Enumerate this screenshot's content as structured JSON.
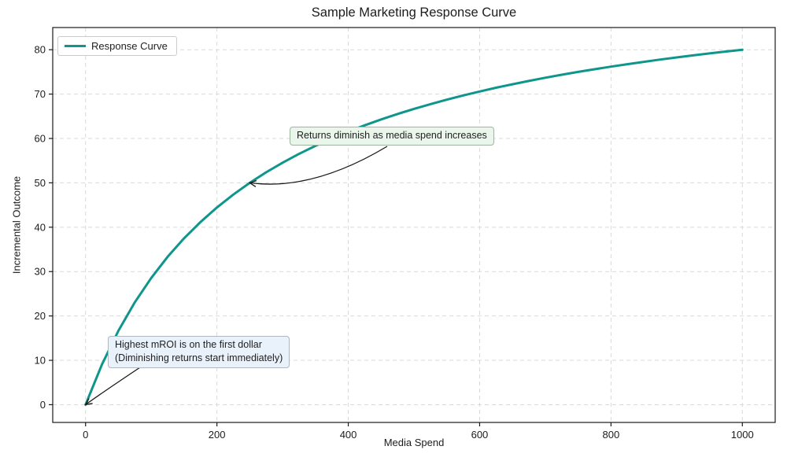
{
  "chart_data": {
    "type": "line",
    "title": "Sample Marketing Response Curve",
    "xlabel": "Media Spend",
    "ylabel": "Incremental Outcome",
    "xlim": [
      -50,
      1050
    ],
    "ylim": [
      -4,
      85
    ],
    "xticks": [
      0,
      200,
      400,
      600,
      800,
      1000
    ],
    "yticks": [
      0,
      10,
      20,
      30,
      40,
      50,
      60,
      70,
      80
    ],
    "grid": true,
    "grid_color": "#d9d9d9",
    "spine_color": "#1a1a1a",
    "legend_position": "upper left",
    "series": [
      {
        "name": "Response Curve",
        "color": "#0f968c",
        "x": [
          0,
          25,
          50,
          75,
          100,
          125,
          150,
          175,
          200,
          225,
          250,
          275,
          300,
          325,
          350,
          375,
          400,
          425,
          450,
          475,
          500,
          525,
          550,
          575,
          600,
          625,
          650,
          675,
          700,
          725,
          750,
          775,
          800,
          825,
          850,
          875,
          900,
          925,
          950,
          975,
          1000
        ],
        "y": [
          0,
          9.09,
          16.67,
          23.08,
          28.57,
          33.33,
          37.5,
          41.18,
          44.44,
          47.37,
          50,
          52.38,
          54.55,
          56.52,
          58.33,
          60,
          61.54,
          62.96,
          64.29,
          65.52,
          66.67,
          67.74,
          68.75,
          69.7,
          70.59,
          71.43,
          72.22,
          72.97,
          73.68,
          74.36,
          75,
          75.61,
          76.19,
          76.74,
          77.27,
          77.78,
          78.26,
          78.72,
          79.17,
          79.59,
          80
        ]
      }
    ],
    "annotations": [
      {
        "text": "Returns diminish as media spend increases",
        "xy": [
          250,
          50
        ],
        "box_fill": "#eaf6ec",
        "box_border": "#9db79f",
        "arrow_color": "#1a1a1a"
      },
      {
        "text": "Highest mROI is on the first dollar\n(Diminishing returns start immediately)",
        "xy": [
          0,
          0
        ],
        "box_fill": "#e9f1fb",
        "box_border": "#a9b8cd",
        "arrow_color": "#1a1a1a"
      }
    ]
  }
}
